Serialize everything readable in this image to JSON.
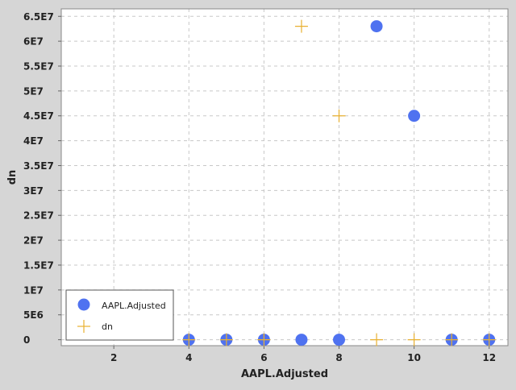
{
  "chart_data": {
    "type": "scatter",
    "xlabel": "AAPL.Adjusted",
    "ylabel": "dn",
    "xlim": [
      0.6,
      12.5
    ],
    "ylim": [
      -1200000,
      66500000
    ],
    "xticks": [
      {
        "value": 2,
        "label": "2"
      },
      {
        "value": 4,
        "label": "4"
      },
      {
        "value": 6,
        "label": "6"
      },
      {
        "value": 8,
        "label": "8"
      },
      {
        "value": 10,
        "label": "10"
      },
      {
        "value": 12,
        "label": "12"
      }
    ],
    "yticks": [
      {
        "value": 0,
        "label": "0"
      },
      {
        "value": 5000000,
        "label": "5E6"
      },
      {
        "value": 10000000,
        "label": "1E7"
      },
      {
        "value": 15000000,
        "label": "1.5E7"
      },
      {
        "value": 20000000,
        "label": "2E7"
      },
      {
        "value": 25000000,
        "label": "2.5E7"
      },
      {
        "value": 30000000,
        "label": "3E7"
      },
      {
        "value": 35000000,
        "label": "3.5E7"
      },
      {
        "value": 40000000,
        "label": "4E7"
      },
      {
        "value": 45000000,
        "label": "4.5E7"
      },
      {
        "value": 50000000,
        "label": "5E7"
      },
      {
        "value": 55000000,
        "label": "5.5E7"
      },
      {
        "value": 60000000,
        "label": "6E7"
      },
      {
        "value": 65000000,
        "label": "6.5E7"
      }
    ],
    "grid": true,
    "legend_position": "bottom-left",
    "series": [
      {
        "name": "AAPL.Adjusted",
        "marker": "circle",
        "color": "#4f72f0",
        "points": [
          {
            "x": 4,
            "y": 0
          },
          {
            "x": 5,
            "y": 0
          },
          {
            "x": 6,
            "y": 0
          },
          {
            "x": 7,
            "y": 0
          },
          {
            "x": 8,
            "y": 0
          },
          {
            "x": 9,
            "y": 63000000
          },
          {
            "x": 10,
            "y": 45000000
          },
          {
            "x": 11,
            "y": 0
          },
          {
            "x": 12,
            "y": 0
          }
        ]
      },
      {
        "name": "dn",
        "marker": "cross",
        "color": "#e8b030",
        "points": [
          {
            "x": 4,
            "y": 0
          },
          {
            "x": 5,
            "y": 0
          },
          {
            "x": 6,
            "y": 0
          },
          {
            "x": 7,
            "y": 63000000
          },
          {
            "x": 8,
            "y": 45000000
          },
          {
            "x": 9,
            "y": 0
          },
          {
            "x": 10,
            "y": 0
          },
          {
            "x": 11,
            "y": 0
          },
          {
            "x": 12,
            "y": 0
          }
        ]
      }
    ]
  }
}
